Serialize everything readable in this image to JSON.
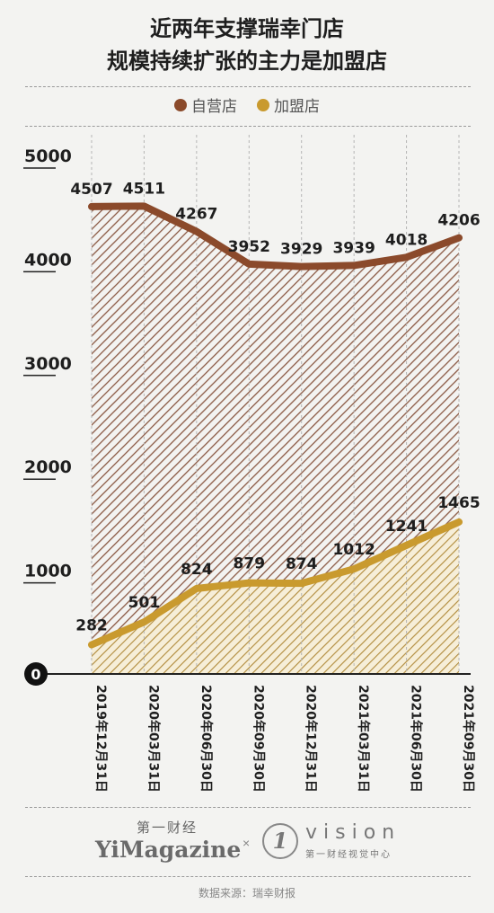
{
  "header": {
    "title_line1": "近两年支撑瑞幸门店",
    "title_line2": "规模持续扩张的主力是加盟店"
  },
  "legend": {
    "self_operated": "自营店",
    "franchise": "加盟店"
  },
  "colors": {
    "self_operated": "#8b4a2b",
    "franchise": "#c99a2e",
    "hatch_dark": "#8b5a45",
    "hatch_light": "#b08a3a",
    "background": "#f3f3f1"
  },
  "chart_data": {
    "type": "area",
    "title": "近两年支撑瑞幸门店规模持续扩张的主力是加盟店",
    "categories": [
      "2019年12月31日",
      "2020年03月31日",
      "2020年06月30日",
      "2020年09月30日",
      "2020年12月31日",
      "2021年03月31日",
      "2021年06月30日",
      "2021年09月30日"
    ],
    "series": [
      {
        "name": "自营店",
        "values": [
          4507,
          4511,
          4267,
          3952,
          3929,
          3939,
          4018,
          4206
        ]
      },
      {
        "name": "加盟店",
        "values": [
          282,
          501,
          824,
          879,
          874,
          1012,
          1241,
          1465
        ]
      }
    ],
    "yticks": [
      0,
      1000,
      2000,
      3000,
      4000,
      5000
    ],
    "ylim": [
      0,
      5000
    ],
    "grid": false,
    "legend_position": "top-center"
  },
  "footer": {
    "brand1_cn": "第一财经",
    "brand1_en": "YiMagazine",
    "times": "×",
    "brand2_num": "1",
    "brand2_word": "vision",
    "brand2_sub": "第一财经视觉中心",
    "source": "数据来源：瑞幸财报"
  }
}
